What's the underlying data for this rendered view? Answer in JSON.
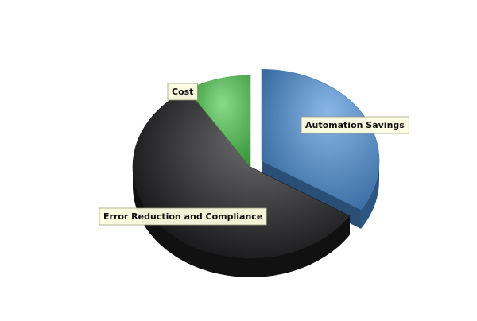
{
  "chart_data": {
    "type": "pie",
    "style": "3d",
    "labels": [
      "Automation Savings",
      "Error Reduction and Compliance",
      "Cost"
    ],
    "values": [
      34,
      57,
      9
    ],
    "unit": "percent (estimated share of pie)",
    "exploded": "Automation Savings",
    "colors": [
      "#4a8fd6",
      "#1c1c1e",
      "#49c449"
    ],
    "legend": "none (callout labels on slices)",
    "title": ""
  }
}
